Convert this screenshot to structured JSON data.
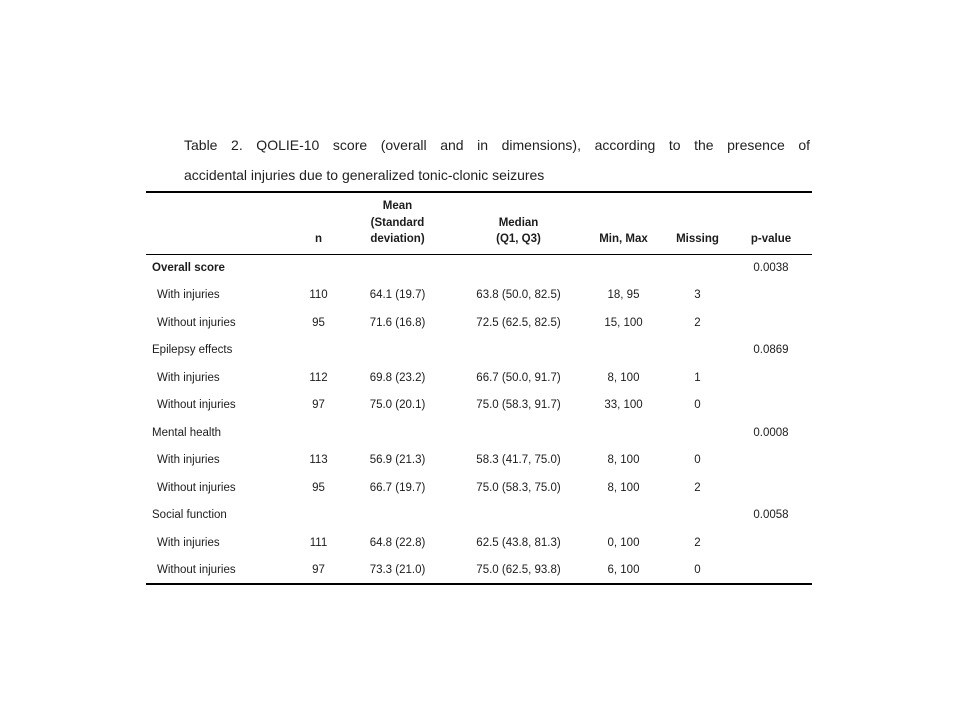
{
  "page": {
    "title_lines": [
      "Table 2. QOLIE-10 score (overall and in dimensions), according to the presence of",
      "accidental injuries due to generalized tonic-clonic seizures"
    ]
  },
  "table": {
    "columns": [
      {
        "id": "row-label",
        "lines": []
      },
      {
        "id": "n",
        "lines": [
          "n"
        ]
      },
      {
        "id": "mean-sd",
        "lines": [
          "Mean",
          "(Standard",
          "deviation)"
        ]
      },
      {
        "id": "median-q1-q3",
        "lines": [
          "Median",
          "(Q1, Q3)"
        ]
      },
      {
        "id": "min-max",
        "lines": [
          "Min, Max"
        ]
      },
      {
        "id": "missing",
        "lines": [
          "Missing"
        ]
      },
      {
        "id": "p-value",
        "lines": [
          "p-value"
        ]
      }
    ],
    "sections": [
      {
        "label": "Overall score",
        "bold": true,
        "p_value": "0.0038",
        "rows": [
          {
            "label": "With injuries",
            "n": "110",
            "mean_sd": "64.1 (19.7)",
            "median_q": "63.8 (50.0, 82.5)",
            "min_max": "18, 95",
            "missing": "3"
          },
          {
            "label": "Without injuries",
            "n": "95",
            "mean_sd": "71.6 (16.8)",
            "median_q": "72.5 (62.5, 82.5)",
            "min_max": "15, 100",
            "missing": "2"
          }
        ]
      },
      {
        "label": "Epilepsy effects",
        "bold": false,
        "p_value": "0.0869",
        "rows": [
          {
            "label": "With injuries",
            "n": "112",
            "mean_sd": "69.8 (23.2)",
            "median_q": "66.7 (50.0, 91.7)",
            "min_max": "8, 100",
            "missing": "1"
          },
          {
            "label": "Without injuries",
            "n": "97",
            "mean_sd": "75.0 (20.1)",
            "median_q": "75.0 (58.3, 91.7)",
            "min_max": "33, 100",
            "missing": "0"
          }
        ]
      },
      {
        "label": "Mental health",
        "bold": false,
        "p_value": "0.0008",
        "rows": [
          {
            "label": "With injuries",
            "n": "113",
            "mean_sd": "56.9 (21.3)",
            "median_q": "58.3 (41.7, 75.0)",
            "min_max": "8, 100",
            "missing": "0"
          },
          {
            "label": "Without injuries",
            "n": "95",
            "mean_sd": "66.7 (19.7)",
            "median_q": "75.0 (58.3, 75.0)",
            "min_max": "8, 100",
            "missing": "2"
          }
        ]
      },
      {
        "label": "Social function",
        "bold": false,
        "p_value": "0.0058",
        "rows": [
          {
            "label": "With injuries",
            "n": "111",
            "mean_sd": "64.8 (22.8)",
            "median_q": "62.5 (43.8, 81.3)",
            "min_max": "0, 100",
            "missing": "2"
          },
          {
            "label": "Without injuries",
            "n": "97",
            "mean_sd": "73.3 (21.0)",
            "median_q": "75.0 (62.5, 93.8)",
            "min_max": "6, 100",
            "missing": "0"
          }
        ]
      }
    ]
  }
}
